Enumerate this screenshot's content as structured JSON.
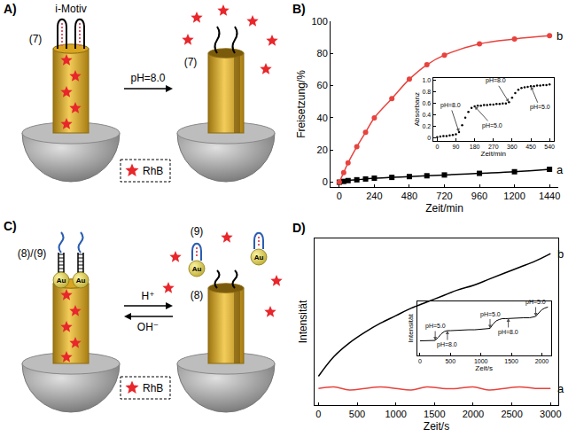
{
  "panel_letters": [
    "A)",
    "B)",
    "C)",
    "D)"
  ],
  "diagram_A": {
    "structure_label": "i-Motiv",
    "strand_left": "(7)",
    "strand_right": "(7)",
    "arrow_label": "pH=8.0",
    "key_label": "RhB"
  },
  "diagram_C": {
    "strand_left": "(8)/(9)",
    "released": "(9)",
    "remaining": "(8)",
    "particle": "Au",
    "arrow_forward": "H⁺",
    "arrow_back": "OH⁻",
    "key_label": "RhB"
  },
  "chart_data": [
    {
      "type": "line",
      "xlabel": "Zeit/min",
      "ylabel": "Freisetzung/%",
      "xlim": [
        -60,
        1500
      ],
      "xticks": [
        0,
        240,
        480,
        720,
        960,
        1200,
        1440
      ],
      "ylim": [
        -3,
        100
      ],
      "yticks": [
        0,
        20,
        40,
        60,
        80,
        100
      ],
      "x": [
        0,
        30,
        60,
        120,
        180,
        240,
        360,
        480,
        600,
        720,
        960,
        1200,
        1440
      ],
      "series": [
        {
          "name": "a",
          "color": "#000000",
          "marker": "square",
          "values": [
            0,
            0.5,
            1,
            1.5,
            2,
            2.5,
            3,
            3.5,
            4,
            4.5,
            5.5,
            6.5,
            8
          ]
        },
        {
          "name": "b",
          "color": "#e8433e",
          "marker": "circle",
          "values": [
            0,
            6,
            12,
            22,
            31,
            40,
            52,
            64,
            73,
            79,
            86,
            89,
            91
          ]
        }
      ],
      "inset": {
        "type": "scatter",
        "xlabel": "Zeit/min",
        "ylabel": "Absorbanz",
        "color": "#000000",
        "marker": "dot",
        "xlim": [
          -20,
          560
        ],
        "xticks": [
          0,
          90,
          180,
          270,
          360,
          450,
          540
        ],
        "ylim": [
          -0.05,
          1.05
        ],
        "yticks": [
          0,
          0.2,
          0.4,
          0.6,
          0.8,
          {
            "value": 1,
            "label": "1.0"
          }
        ],
        "x": [
          0,
          15,
          30,
          45,
          60,
          75,
          90,
          105,
          120,
          135,
          150,
          165,
          180,
          195,
          210,
          225,
          240,
          255,
          270,
          285,
          300,
          315,
          330,
          345,
          360,
          375,
          390,
          405,
          420,
          435,
          450,
          465,
          480,
          495,
          510,
          525,
          540
        ],
        "values": [
          0.01,
          0.02,
          0.03,
          0.03,
          0.04,
          0.05,
          0.06,
          0.1,
          0.22,
          0.35,
          0.45,
          0.52,
          0.55,
          0.56,
          0.56,
          0.57,
          0.57,
          0.58,
          0.58,
          0.59,
          0.59,
          0.6,
          0.6,
          0.62,
          0.7,
          0.78,
          0.84,
          0.87,
          0.88,
          0.89,
          0.9,
          0.9,
          0.91,
          0.91,
          0.92,
          0.92,
          0.93
        ],
        "annotations": [
          {
            "text": "pH=8.0",
            "x": 105,
            "y": 0.1
          },
          {
            "text": "pH=5.0",
            "x": 180,
            "y": 0.55
          },
          {
            "text": "pH=8.0",
            "x": 345,
            "y": 0.62
          },
          {
            "text": "pH=5.0",
            "x": 450,
            "y": 0.9
          }
        ]
      }
    },
    {
      "type": "line",
      "xlabel": "Zeit/s",
      "ylabel": "Intensität",
      "tick_labels": "x",
      "xlim": [
        -50,
        3100
      ],
      "xticks": [
        0,
        500,
        1000,
        1500,
        2000,
        2500,
        3000
      ],
      "ylim": [
        -0.05,
        1.05
      ],
      "x": [
        0,
        200,
        400,
        600,
        800,
        1000,
        1200,
        1400,
        1600,
        1800,
        2000,
        2200,
        2400,
        2600,
        2800,
        3000
      ],
      "series": [
        {
          "name": "b",
          "color": "#000000",
          "values": [
            0.14,
            0.27,
            0.36,
            0.43,
            0.49,
            0.54,
            0.59,
            0.63,
            0.67,
            0.71,
            0.74,
            0.78,
            0.82,
            0.86,
            0.9,
            0.95
          ]
        },
        {
          "name": "a",
          "color": "#e8433e",
          "values": [
            0.06,
            0.07,
            0.05,
            0.06,
            0.07,
            0.06,
            0.05,
            0.07,
            0.06,
            0.06,
            0.07,
            0.05,
            0.06,
            0.07,
            0.06,
            0.06
          ]
        }
      ],
      "inset": {
        "type": "line",
        "xlabel": "Zeit/s",
        "ylabel": "Intensität",
        "color": "#000000",
        "tick_labels": "x",
        "xlim": [
          -50,
          2150
        ],
        "xticks": [
          0,
          500,
          1000,
          1500,
          2000
        ],
        "ylim": [
          -0.2,
          1.0
        ],
        "x": [
          0,
          100,
          200,
          250,
          300,
          350,
          400,
          450,
          500,
          600,
          700,
          800,
          900,
          1000,
          1100,
          1150,
          1200,
          1250,
          1300,
          1350,
          1400,
          1500,
          1600,
          1700,
          1800,
          1850,
          1900,
          1950,
          2000,
          2050,
          2100
        ],
        "values": [
          0.12,
          0.12,
          0.13,
          0.13,
          0.2,
          0.28,
          0.33,
          0.35,
          0.35,
          0.36,
          0.36,
          0.37,
          0.37,
          0.38,
          0.38,
          0.4,
          0.5,
          0.57,
          0.6,
          0.62,
          0.62,
          0.63,
          0.63,
          0.64,
          0.64,
          0.65,
          0.67,
          0.75,
          0.82,
          0.86,
          0.88
        ],
        "annotations": [
          {
            "text": "pH=5.0",
            "x": 250,
            "y": 0.13
          },
          {
            "text": "pH=8.0",
            "x": 450,
            "y": 0.35
          },
          {
            "text": "pH=5.0",
            "x": 1150,
            "y": 0.4
          },
          {
            "text": "pH=8.0",
            "x": 1450,
            "y": 0.63
          },
          {
            "text": "pH=5.0",
            "x": 1900,
            "y": 0.67
          }
        ]
      }
    }
  ]
}
